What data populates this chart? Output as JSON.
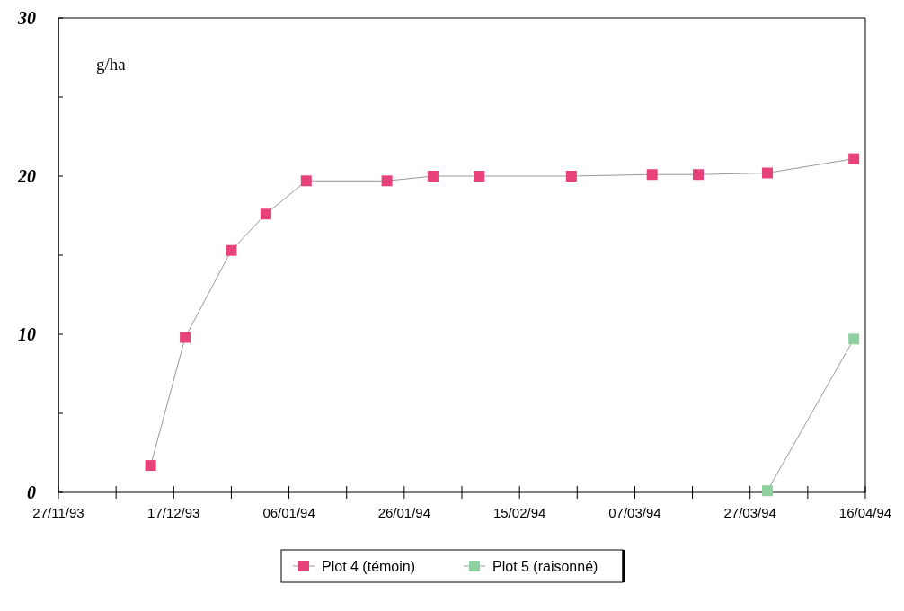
{
  "chart_data": {
    "type": "line",
    "ylabel": "g/ha",
    "marker": "square",
    "line_style": "solid",
    "legend": "bottom",
    "grid": false,
    "xlim": [
      "1993-11-27",
      "1994-04-16"
    ],
    "xticks": [
      {
        "value": "1993-11-27",
        "label": "27/11/93"
      },
      {
        "value": "1993-12-07",
        "label": null
      },
      {
        "value": "1993-12-17",
        "label": "17/12/93"
      },
      {
        "value": "1993-12-27",
        "label": null
      },
      {
        "value": "1994-01-06",
        "label": "06/01/94"
      },
      {
        "value": "1994-01-16",
        "label": null
      },
      {
        "value": "1994-01-26",
        "label": "26/01/94"
      },
      {
        "value": "1994-02-05",
        "label": null
      },
      {
        "value": "1994-02-15",
        "label": "15/02/94"
      },
      {
        "value": "1994-02-25",
        "label": null
      },
      {
        "value": "1994-03-07",
        "label": "07/03/94"
      },
      {
        "value": "1994-03-17",
        "label": null
      },
      {
        "value": "1994-03-27",
        "label": "27/03/94"
      },
      {
        "value": "1994-04-06",
        "label": null
      },
      {
        "value": "1994-04-16",
        "label": "16/04/94"
      }
    ],
    "ylim": [
      0,
      30
    ],
    "yticks": [
      0,
      {
        "value": 5,
        "label": null
      },
      10,
      {
        "value": 15,
        "label": null
      },
      20,
      {
        "value": 25,
        "label": null
      },
      30
    ],
    "series": [
      {
        "name": "Plot 4 (témoin)",
        "color": "#e8427a",
        "x": [
          "1993-12-13",
          "1993-12-19",
          "1993-12-27",
          "1994-01-02",
          "1994-01-09",
          "1994-01-23",
          "1994-01-31",
          "1994-02-08",
          "1994-02-24",
          "1994-03-10",
          "1994-03-18",
          "1994-03-30",
          "1994-04-14"
        ],
        "values": [
          1.7,
          9.8,
          15.3,
          17.6,
          19.7,
          19.7,
          20.0,
          20.0,
          20.0,
          20.1,
          20.1,
          20.2,
          21.1
        ]
      },
      {
        "name": "Plot 5 (raisonné)",
        "color": "#8fd19e",
        "x": [
          "1994-03-30",
          "1994-04-14"
        ],
        "values": [
          0.1,
          9.7
        ]
      }
    ]
  }
}
